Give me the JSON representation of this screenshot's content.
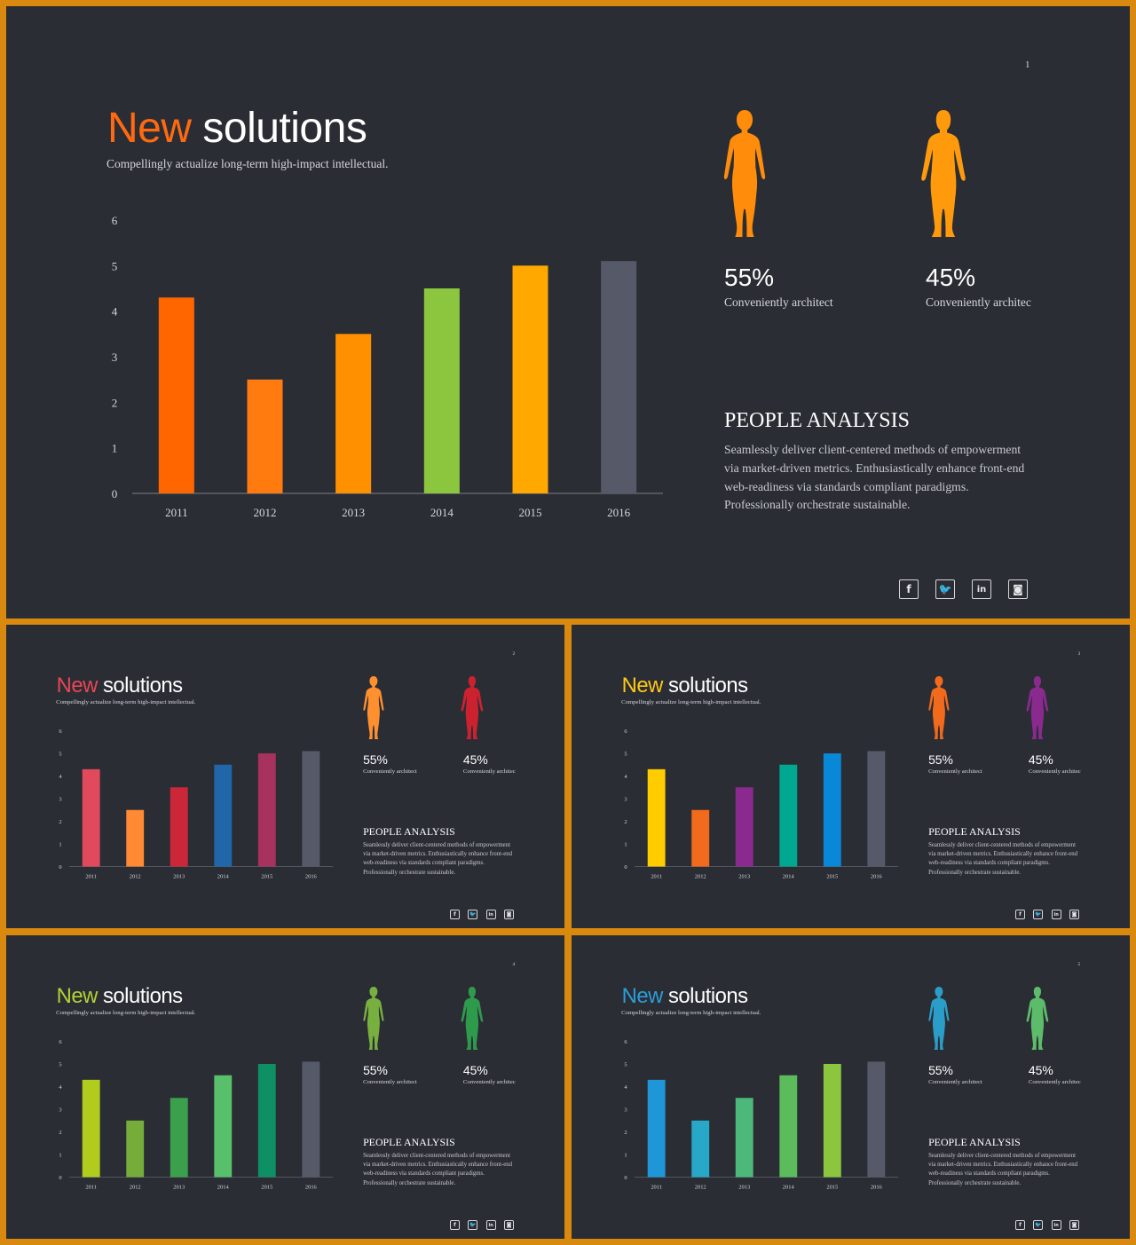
{
  "chart_data": [
    {
      "type": "bar",
      "categories": [
        "2011",
        "2012",
        "2013",
        "2014",
        "2015",
        "2016"
      ],
      "values": [
        4.3,
        2.5,
        3.5,
        4.5,
        5.0,
        5.1
      ],
      "ylim": [
        0,
        6
      ],
      "yticks": [
        "0",
        "1",
        "2",
        "3",
        "4",
        "5",
        "6"
      ],
      "grid": false
    },
    {
      "type": "bar",
      "categories": [
        "2011",
        "2012",
        "2013",
        "2014",
        "2015",
        "2016"
      ],
      "values": [
        4.3,
        2.5,
        3.5,
        4.5,
        5.0,
        5.1
      ],
      "ylim": [
        0,
        6
      ],
      "yticks": [
        "0",
        "1",
        "2",
        "3",
        "4",
        "5",
        "6"
      ],
      "grid": false
    },
    {
      "type": "bar",
      "categories": [
        "2011",
        "2012",
        "2013",
        "2014",
        "2015",
        "2016"
      ],
      "values": [
        4.3,
        2.5,
        3.5,
        4.5,
        5.0,
        5.1
      ],
      "ylim": [
        0,
        6
      ],
      "yticks": [
        "0",
        "1",
        "2",
        "3",
        "4",
        "5",
        "6"
      ],
      "grid": false
    },
    {
      "type": "bar",
      "categories": [
        "2011",
        "2012",
        "2013",
        "2014",
        "2015",
        "2016"
      ],
      "values": [
        4.3,
        2.5,
        3.5,
        4.5,
        5.0,
        5.1
      ],
      "ylim": [
        0,
        6
      ],
      "yticks": [
        "0",
        "1",
        "2",
        "3",
        "4",
        "5",
        "6"
      ],
      "grid": false
    },
    {
      "type": "bar",
      "categories": [
        "2011",
        "2012",
        "2013",
        "2014",
        "2015",
        "2016"
      ],
      "values": [
        4.3,
        2.5,
        3.5,
        4.5,
        5.0,
        5.1
      ],
      "ylim": [
        0,
        6
      ],
      "yticks": [
        "0",
        "1",
        "2",
        "3",
        "4",
        "5",
        "6"
      ],
      "grid": false
    }
  ],
  "slides": [
    {
      "number": "1",
      "title_accent": "New",
      "title_rest": " solutions",
      "subtitle": "Compellingly actualize long-term high-impact intellectual.",
      "accent_color": "#ff6a10",
      "bar_colors": [
        "#ff6600",
        "#ff7b0f",
        "#ff9000",
        "#8cc63f",
        "#ffa800",
        "#565a68"
      ],
      "people": [
        {
          "pct": "55%",
          "label": "Conveniently architect",
          "color": "#ff8c0a",
          "figure": "female-figure-icon"
        },
        {
          "pct": "45%",
          "label": "Conveniently architec",
          "color": "#ff9a0c",
          "figure": "male-figure-icon"
        }
      ],
      "analysis_title": "PEOPLE ANALYSIS",
      "analysis_body": "Seamlessly deliver client-centered methods of empowerment via market-driven metrics. Enthusiastically enhance front-end web-readiness via standards compliant paradigms. Professionally orchestrate sustainable.",
      "social": [
        {
          "icon": "facebook-icon",
          "glyph": "f"
        },
        {
          "icon": "twitter-icon",
          "glyph": "🐦"
        },
        {
          "icon": "linkedin-icon",
          "glyph": "in"
        },
        {
          "icon": "instagram-icon",
          "glyph": "◙"
        }
      ]
    },
    {
      "number": "2",
      "title_accent": "New",
      "title_rest": " solutions",
      "subtitle": "Compellingly actualize long-term high-impact intellectual.",
      "accent_color": "#e84655",
      "bar_colors": [
        "#e04a5c",
        "#ff8a33",
        "#cc2738",
        "#2166a8",
        "#a8325e",
        "#565a68"
      ],
      "people": [
        {
          "pct": "55%",
          "label": "Conveniently architect",
          "color": "#ff9030",
          "figure": "female-figure-icon"
        },
        {
          "pct": "45%",
          "label": "Conveniently architec",
          "color": "#cc2230",
          "figure": "male-figure-icon"
        }
      ],
      "analysis_title": "PEOPLE ANALYSIS",
      "analysis_body": "Seamlessly deliver client-centered methods of empowerment via market-driven metrics. Enthusiastically enhance front-end web-readiness via standards compliant paradigms. Professionally orchestrate sustainable.",
      "social": [
        {
          "icon": "facebook-icon",
          "glyph": "f"
        },
        {
          "icon": "twitter-icon",
          "glyph": "🐦"
        },
        {
          "icon": "linkedin-icon",
          "glyph": "in"
        },
        {
          "icon": "instagram-icon",
          "glyph": "◙"
        }
      ]
    },
    {
      "number": "3",
      "title_accent": "New",
      "title_rest": " solutions",
      "subtitle": "Compellingly actualize long-term high-impact intellectual.",
      "accent_color": "#ffc914",
      "bar_colors": [
        "#ffcc00",
        "#f26a1b",
        "#8a2a8e",
        "#00a88f",
        "#0a88d8",
        "#565a68"
      ],
      "people": [
        {
          "pct": "55%",
          "label": "Conveniently architect",
          "color": "#f26a1b",
          "figure": "female-figure-icon"
        },
        {
          "pct": "45%",
          "label": "Conveniently architec",
          "color": "#8a2a8e",
          "figure": "male-figure-icon"
        }
      ],
      "analysis_title": "PEOPLE ANALYSIS",
      "analysis_body": "Seamlessly deliver client-centered methods of empowerment via market-driven metrics. Enthusiastically enhance front-end web-readiness via standards compliant paradigms. Professionally orchestrate sustainable.",
      "social": [
        {
          "icon": "facebook-icon",
          "glyph": "f"
        },
        {
          "icon": "twitter-icon",
          "glyph": "🐦"
        },
        {
          "icon": "linkedin-icon",
          "glyph": "in"
        },
        {
          "icon": "instagram-icon",
          "glyph": "◙"
        }
      ]
    },
    {
      "number": "4",
      "title_accent": "New",
      "title_rest": " solutions",
      "subtitle": "Compellingly actualize long-term high-impact intellectual.",
      "accent_color": "#b2d233",
      "bar_colors": [
        "#b2cc1e",
        "#76ac3a",
        "#3aa04c",
        "#58c06a",
        "#0e8f64",
        "#565a68"
      ],
      "people": [
        {
          "pct": "55%",
          "label": "Conveniently architect",
          "color": "#78b040",
          "figure": "female-figure-icon"
        },
        {
          "pct": "45%",
          "label": "Conveniently architec",
          "color": "#2e9a4c",
          "figure": "male-figure-icon"
        }
      ],
      "analysis_title": "PEOPLE ANALYSIS",
      "analysis_body": "Seamlessly deliver client-centered methods of empowerment via market-driven metrics. Enthusiastically enhance front-end web-readiness via standards compliant paradigms. Professionally orchestrate sustainable.",
      "social": [
        {
          "icon": "facebook-icon",
          "glyph": "f"
        },
        {
          "icon": "twitter-icon",
          "glyph": "🐦"
        },
        {
          "icon": "linkedin-icon",
          "glyph": "in"
        },
        {
          "icon": "instagram-icon",
          "glyph": "◙"
        }
      ]
    },
    {
      "number": "5",
      "title_accent": "New",
      "title_rest": " solutions",
      "subtitle": "Compellingly actualize long-term high-impact intellectual.",
      "accent_color": "#2a9ed8",
      "bar_colors": [
        "#1e96d8",
        "#27a8c8",
        "#4cb87a",
        "#5cbc5c",
        "#8cc63f",
        "#565a68"
      ],
      "people": [
        {
          "pct": "55%",
          "label": "Conveniently architect",
          "color": "#2a9ec8",
          "figure": "female-figure-icon"
        },
        {
          "pct": "45%",
          "label": "Conveniently architec",
          "color": "#5cbc6a",
          "figure": "male-figure-icon"
        }
      ],
      "analysis_title": "PEOPLE ANALYSIS",
      "analysis_body": "Seamlessly deliver client-centered methods of empowerment via market-driven metrics. Enthusiastically enhance front-end web-readiness via standards compliant paradigms. Professionally orchestrate sustainable.",
      "social": [
        {
          "icon": "facebook-icon",
          "glyph": "f"
        },
        {
          "icon": "twitter-icon",
          "glyph": "🐦"
        },
        {
          "icon": "linkedin-icon",
          "glyph": "in"
        },
        {
          "icon": "instagram-icon",
          "glyph": "◙"
        }
      ]
    }
  ]
}
